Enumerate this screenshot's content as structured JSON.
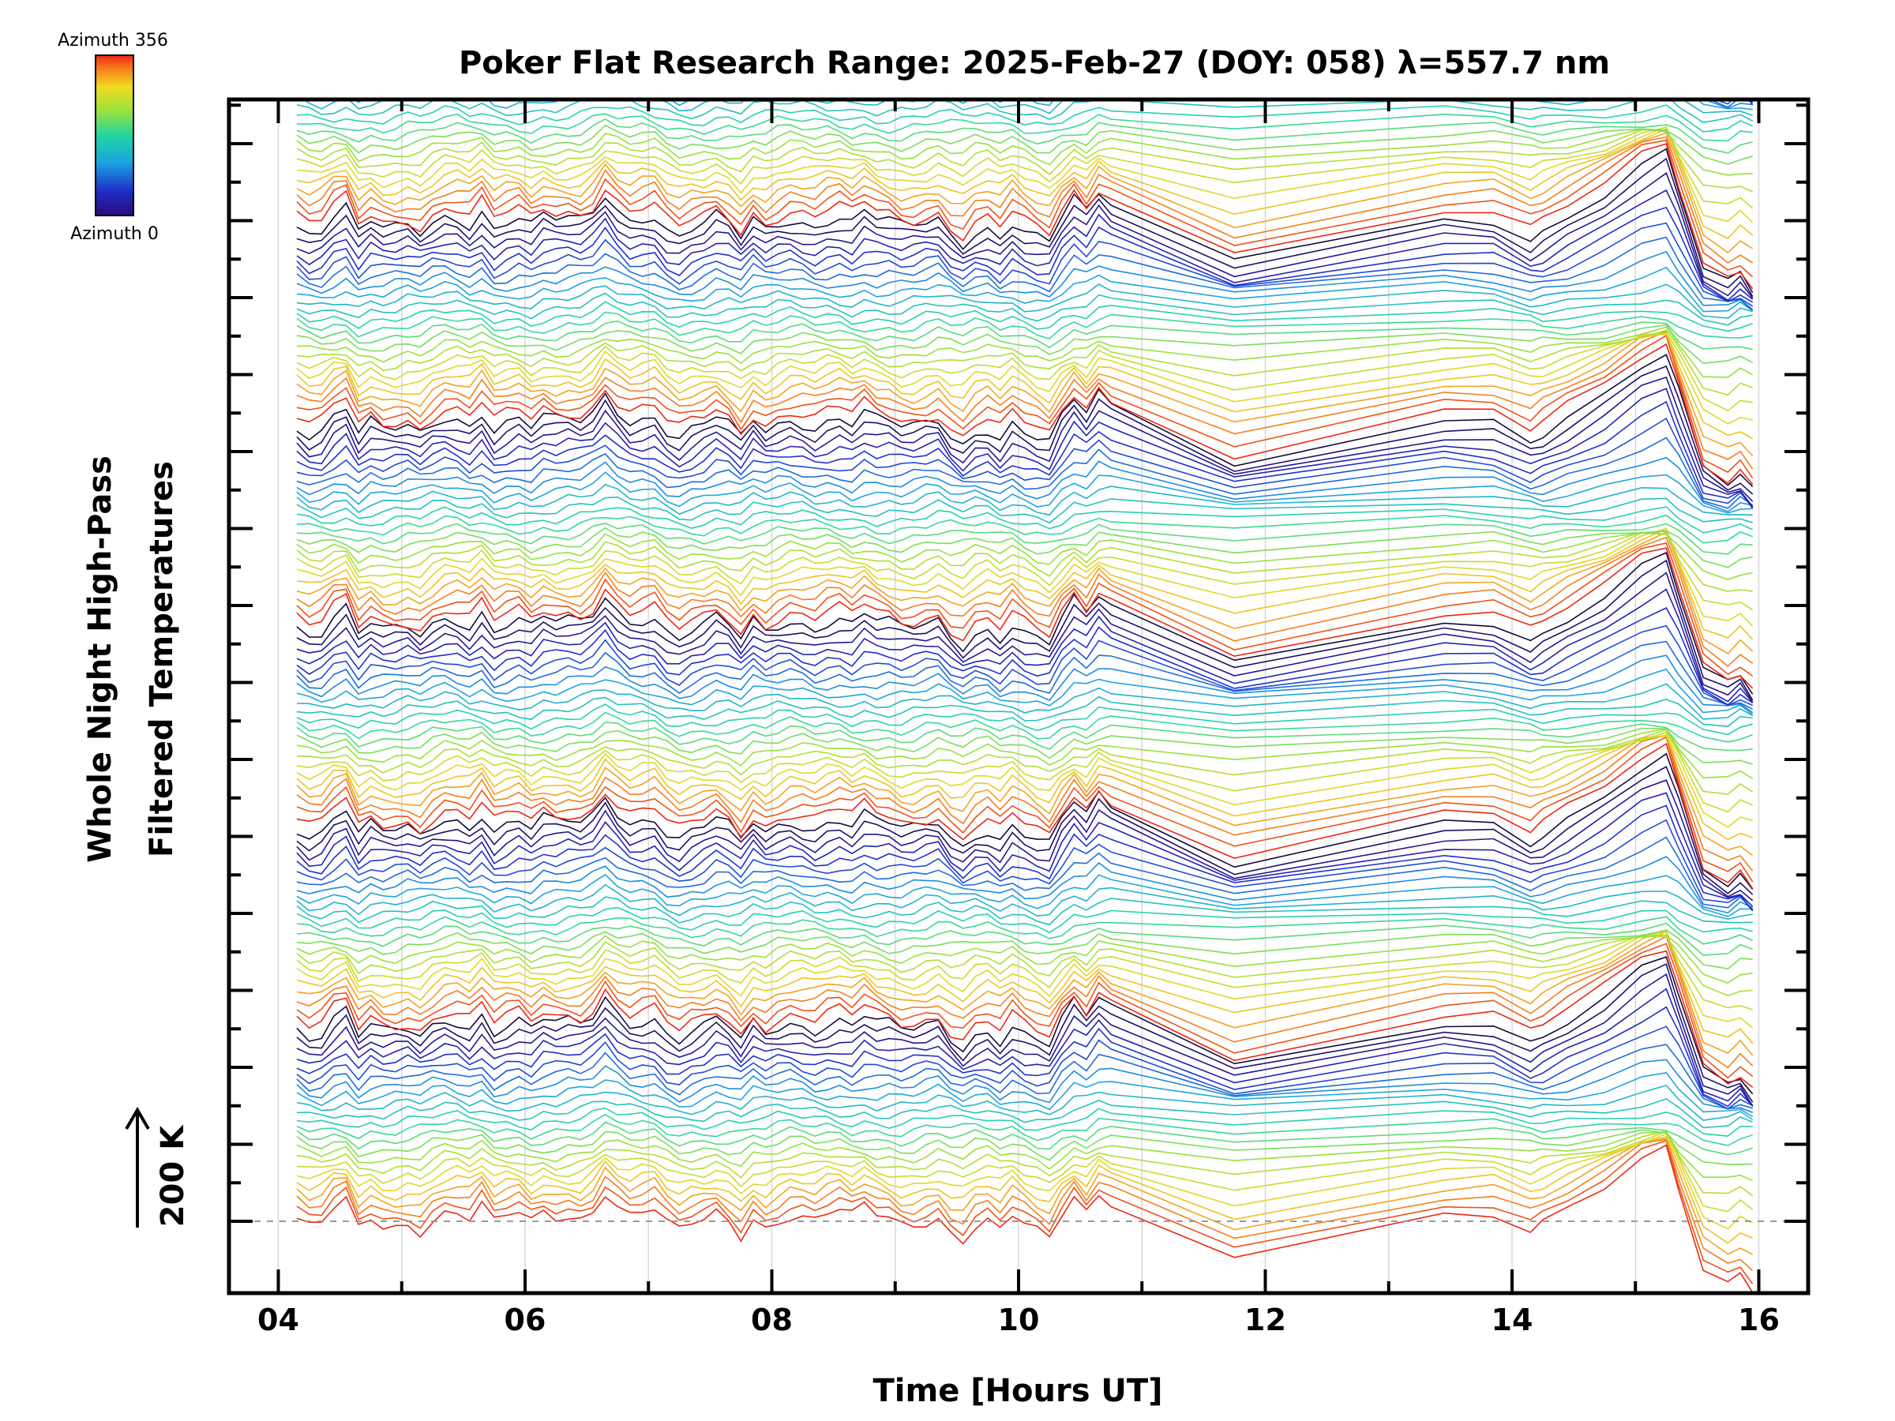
{
  "chart_data": {
    "type": "line",
    "title": "Poker Flat Research Range: 2025-Feb-27 (DOY: 058) λ=557.7 nm",
    "xlabel": "Time [Hours UT]",
    "ylabel_line1": "Whole Night High-Pass",
    "ylabel_line2": "Filtered Temperatures",
    "scale_label": "200 K",
    "xlim": [
      3.6,
      16.4
    ],
    "x_ticks": [
      4,
      6,
      8,
      10,
      12,
      14,
      16
    ],
    "x_tick_labels": [
      "04",
      "06",
      "08",
      "10",
      "12",
      "14",
      "16"
    ],
    "x_minor_step": 1,
    "y_ticks": 15,
    "grid": "vertical every 1 hour",
    "baseline": "dashed grey at lowest trace",
    "colorbar": {
      "label_top": "Azimuth 356",
      "label_bottom": "Azimuth 0",
      "colormap": "rainbow",
      "vmin": 0,
      "vmax": 356
    },
    "n_traces": 140,
    "trace_offset_k": 50,
    "trace_description": "Stacked high-pass filtered temperature traces, one per azimuth, colored by azimuth and offset vertically",
    "time_points": [
      4.15,
      4.25,
      4.35,
      4.45,
      4.55,
      4.65,
      4.75,
      4.85,
      4.95,
      5.05,
      5.15,
      5.25,
      5.35,
      5.45,
      5.55,
      5.65,
      5.75,
      5.85,
      5.95,
      6.05,
      6.15,
      6.25,
      6.35,
      6.45,
      6.55,
      6.65,
      6.75,
      6.85,
      6.95,
      7.05,
      7.15,
      7.25,
      7.35,
      7.45,
      7.55,
      7.65,
      7.75,
      7.85,
      7.95,
      8.05,
      8.15,
      8.25,
      8.35,
      8.45,
      8.55,
      8.65,
      8.75,
      8.85,
      8.95,
      9.05,
      9.15,
      9.25,
      9.35,
      9.45,
      9.55,
      9.65,
      9.75,
      9.85,
      9.95,
      10.05,
      10.15,
      10.25,
      10.35,
      10.45,
      10.55,
      10.65,
      10.75,
      11.75,
      13.45,
      13.85,
      14.15,
      14.25,
      14.45,
      14.75,
      15.05,
      15.25,
      15.35,
      15.55,
      15.75,
      15.85,
      15.95
    ],
    "signal_k": [
      5,
      -12,
      -8,
      18,
      30,
      -18,
      2,
      -10,
      -8,
      -2,
      -12,
      8,
      20,
      18,
      6,
      28,
      -6,
      4,
      10,
      -6,
      12,
      6,
      10,
      8,
      24,
      58,
      32,
      14,
      18,
      20,
      -8,
      -22,
      -10,
      -2,
      12,
      0,
      -24,
      10,
      -6,
      6,
      14,
      10,
      2,
      12,
      16,
      4,
      22,
      8,
      4,
      -6,
      -4,
      4,
      12,
      -14,
      -28,
      -6,
      0,
      -18,
      6,
      -12,
      -24,
      -34,
      10,
      42,
      20,
      56,
      40,
      -58,
      18,
      16,
      -18,
      -8,
      16,
      52,
      100,
      120,
      54,
      -80,
      -104,
      -86,
      -110
    ]
  }
}
